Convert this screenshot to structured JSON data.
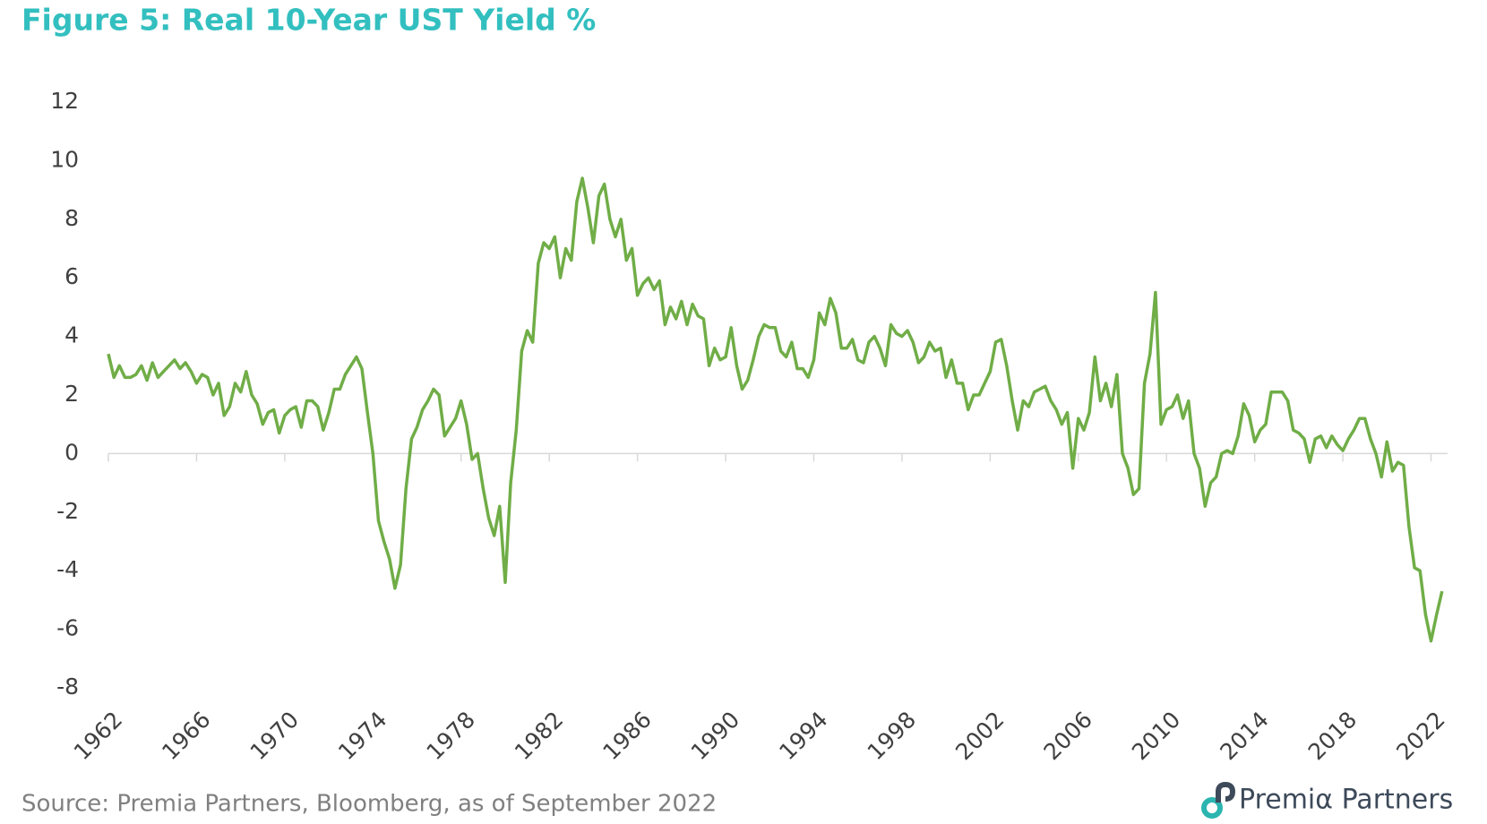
{
  "chart_data": {
    "type": "line",
    "title": "Figure 5: Real 10-Year UST Yield %",
    "source": "Source: Premia Partners, Bloomberg, as of September 2022",
    "logo": "Premiα Partners",
    "color": "#70ad47",
    "xlim": [
      1962,
      2022.75
    ],
    "ylim": [
      -8,
      12
    ],
    "xticks": [
      1962,
      1966,
      1970,
      1974,
      1978,
      1982,
      1986,
      1990,
      1994,
      1998,
      2002,
      2006,
      2010,
      2014,
      2018,
      2022
    ],
    "yticks": [
      -8,
      -6,
      -4,
      -2,
      0,
      2,
      4,
      6,
      8,
      10,
      12
    ],
    "x": [
      1962,
      1962.25,
      1962.5,
      1962.75,
      1963,
      1963.25,
      1963.5,
      1963.75,
      1964,
      1964.25,
      1964.5,
      1964.75,
      1965,
      1965.25,
      1965.5,
      1965.75,
      1966,
      1966.25,
      1966.5,
      1966.75,
      1967,
      1967.25,
      1967.5,
      1967.75,
      1968,
      1968.25,
      1968.5,
      1968.75,
      1969,
      1969.25,
      1969.5,
      1969.75,
      1970,
      1970.25,
      1970.5,
      1970.75,
      1971,
      1971.25,
      1971.5,
      1971.75,
      1972,
      1972.25,
      1972.5,
      1972.75,
      1973,
      1973.25,
      1973.5,
      1973.75,
      1974,
      1974.25,
      1974.5,
      1974.75,
      1975,
      1975.25,
      1975.5,
      1975.75,
      1976,
      1976.25,
      1976.5,
      1976.75,
      1977,
      1977.25,
      1977.5,
      1977.75,
      1978,
      1978.25,
      1978.5,
      1978.75,
      1979,
      1979.25,
      1979.5,
      1979.75,
      1980,
      1980.25,
      1980.5,
      1980.75,
      1981,
      1981.25,
      1981.5,
      1981.75,
      1982,
      1982.25,
      1982.5,
      1982.75,
      1983,
      1983.25,
      1983.5,
      1983.75,
      1984,
      1984.25,
      1984.5,
      1984.75,
      1985,
      1985.25,
      1985.5,
      1985.75,
      1986,
      1986.25,
      1986.5,
      1986.75,
      1987,
      1987.25,
      1987.5,
      1987.75,
      1988,
      1988.25,
      1988.5,
      1988.75,
      1989,
      1989.25,
      1989.5,
      1989.75,
      1990,
      1990.25,
      1990.5,
      1990.75,
      1991,
      1991.25,
      1991.5,
      1991.75,
      1992,
      1992.25,
      1992.5,
      1992.75,
      1993,
      1993.25,
      1993.5,
      1993.75,
      1994,
      1994.25,
      1994.5,
      1994.75,
      1995,
      1995.25,
      1995.5,
      1995.75,
      1996,
      1996.25,
      1996.5,
      1996.75,
      1997,
      1997.25,
      1997.5,
      1997.75,
      1998,
      1998.25,
      1998.5,
      1998.75,
      1999,
      1999.25,
      1999.5,
      1999.75,
      2000,
      2000.25,
      2000.5,
      2000.75,
      2001,
      2001.25,
      2001.5,
      2001.75,
      2002,
      2002.25,
      2002.5,
      2002.75,
      2003,
      2003.25,
      2003.5,
      2003.75,
      2004,
      2004.25,
      2004.5,
      2004.75,
      2005,
      2005.25,
      2005.5,
      2005.75,
      2006,
      2006.25,
      2006.5,
      2006.75,
      2007,
      2007.25,
      2007.5,
      2007.75,
      2008,
      2008.25,
      2008.5,
      2008.75,
      2009,
      2009.25,
      2009.5,
      2009.75,
      2010,
      2010.25,
      2010.5,
      2010.75,
      2011,
      2011.25,
      2011.5,
      2011.75,
      2012,
      2012.25,
      2012.5,
      2012.75,
      2013,
      2013.25,
      2013.5,
      2013.75,
      2014,
      2014.25,
      2014.5,
      2014.75,
      2015,
      2015.25,
      2015.5,
      2015.75,
      2016,
      2016.25,
      2016.5,
      2016.75,
      2017,
      2017.25,
      2017.5,
      2017.75,
      2018,
      2018.25,
      2018.5,
      2018.75,
      2019,
      2019.25,
      2019.5,
      2019.75,
      2020,
      2020.25,
      2020.5,
      2020.75,
      2021,
      2021.25,
      2021.5,
      2021.75,
      2022,
      2022.25,
      2022.5
    ],
    "values": [
      3.4,
      2.6,
      3.0,
      2.6,
      2.6,
      2.7,
      3.0,
      2.5,
      3.1,
      2.6,
      2.8,
      3.0,
      3.2,
      2.9,
      3.1,
      2.8,
      2.4,
      2.7,
      2.6,
      2.0,
      2.4,
      1.3,
      1.6,
      2.4,
      2.1,
      2.8,
      2.0,
      1.7,
      1.0,
      1.4,
      1.5,
      0.7,
      1.3,
      1.5,
      1.6,
      0.9,
      1.8,
      1.8,
      1.6,
      0.8,
      1.4,
      2.2,
      2.2,
      2.7,
      3.0,
      3.3,
      2.9,
      1.4,
      0.0,
      -2.3,
      -3.0,
      -3.6,
      -4.6,
      -3.8,
      -1.2,
      0.5,
      0.9,
      1.5,
      1.8,
      2.2,
      2.0,
      0.6,
      0.9,
      1.2,
      1.8,
      1.0,
      -0.2,
      0.0,
      -1.2,
      -2.2,
      -2.8,
      -1.8,
      -4.4,
      -1.0,
      0.8,
      3.5,
      4.2,
      3.8,
      6.5,
      7.2,
      7.0,
      7.4,
      6.0,
      7.0,
      6.6,
      8.6,
      9.4,
      8.4,
      7.2,
      8.8,
      9.2,
      8.0,
      7.4,
      8.0,
      6.6,
      7.0,
      5.4,
      5.8,
      6.0,
      5.6,
      5.9,
      4.4,
      5.0,
      4.6,
      5.2,
      4.4,
      5.1,
      4.7,
      4.6,
      3.0,
      3.6,
      3.2,
      3.3,
      4.3,
      3.0,
      2.2,
      2.5,
      3.2,
      4.0,
      4.4,
      4.3,
      4.3,
      3.5,
      3.3,
      3.8,
      2.9,
      2.9,
      2.6,
      3.2,
      4.8,
      4.4,
      5.3,
      4.8,
      3.6,
      3.6,
      3.9,
      3.2,
      3.1,
      3.8,
      4.0,
      3.6,
      3.0,
      4.4,
      4.1,
      4.0,
      4.2,
      3.8,
      3.1,
      3.3,
      3.8,
      3.5,
      3.6,
      2.6,
      3.2,
      2.4,
      2.4,
      1.5,
      2.0,
      2.0,
      2.4,
      2.8,
      3.8,
      3.9,
      3.0,
      1.8,
      0.8,
      1.8,
      1.6,
      2.1,
      2.2,
      2.3,
      1.8,
      1.5,
      1.0,
      1.4,
      -0.5,
      1.2,
      0.8,
      1.4,
      3.3,
      1.8,
      2.4,
      1.6,
      2.7,
      0.0,
      -0.5,
      -1.4,
      -1.2,
      2.4,
      3.4,
      5.5,
      1.0,
      1.5,
      1.6,
      2.0,
      1.2,
      1.8,
      0.0,
      -0.5,
      -1.8,
      -1.0,
      -0.8,
      0.0,
      0.1,
      0.0,
      0.6,
      1.7,
      1.3,
      0.4,
      0.8,
      1.0,
      2.1,
      2.1,
      2.1,
      1.8,
      0.8,
      0.7,
      0.5,
      -0.3,
      0.5,
      0.6,
      0.2,
      0.6,
      0.3,
      0.1,
      0.5,
      0.8,
      1.2,
      1.2,
      0.5,
      0.0,
      -0.8,
      0.4,
      -0.6,
      -0.3,
      -0.4,
      -2.5,
      -3.9,
      -4.0,
      -5.5,
      -6.4,
      -5.5,
      -4.7
    ]
  }
}
